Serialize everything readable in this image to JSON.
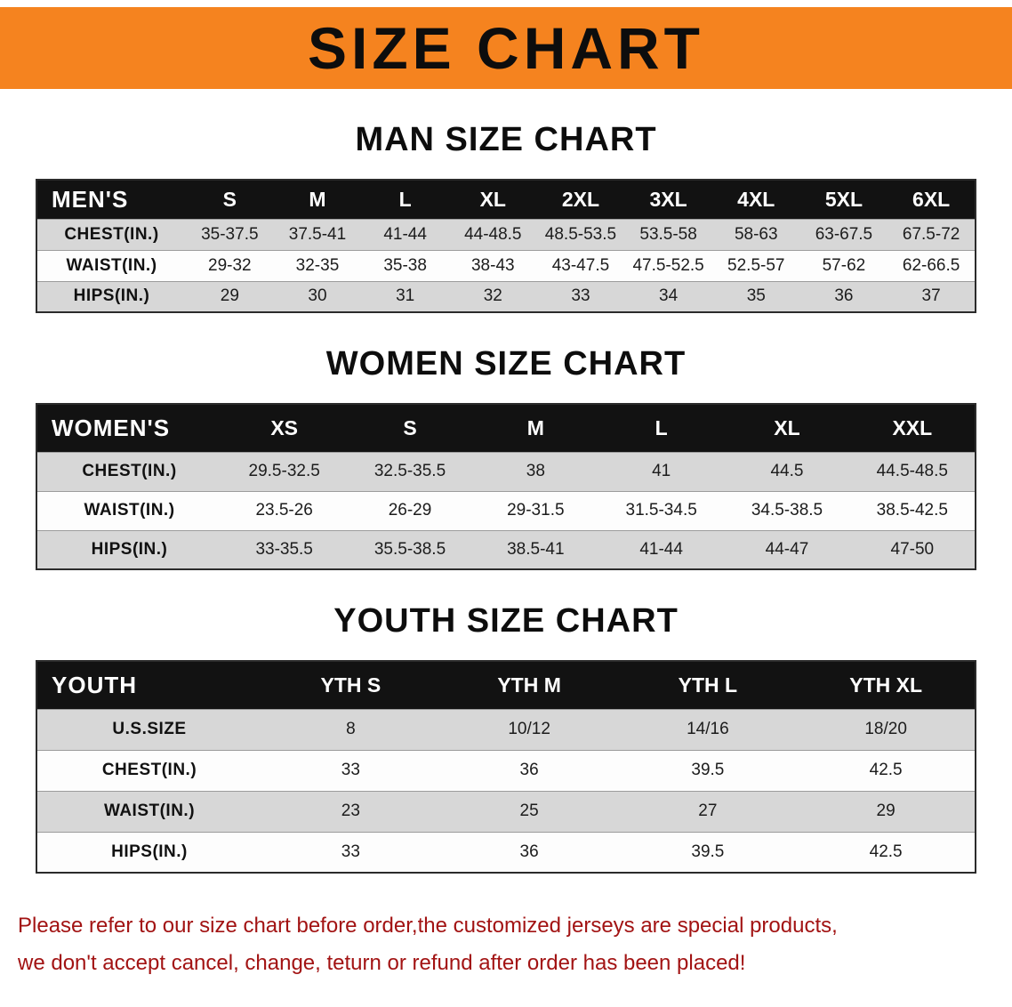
{
  "banner": {
    "title": "SIZE CHART",
    "bg_color": "#F5831F"
  },
  "sections": [
    {
      "heading": "MAN SIZE CHART",
      "table": {
        "label": "MEN'S",
        "columns": [
          "S",
          "M",
          "L",
          "XL",
          "2XL",
          "3XL",
          "4XL",
          "5XL",
          "6XL"
        ],
        "rows": [
          {
            "label": "CHEST(IN.)",
            "values": [
              "35-37.5",
              "37.5-41",
              "41-44",
              "44-48.5",
              "48.5-53.5",
              "53.5-58",
              "58-63",
              "63-67.5",
              "67.5-72"
            ]
          },
          {
            "label": "WAIST(IN.)",
            "values": [
              "29-32",
              "32-35",
              "35-38",
              "38-43",
              "43-47.5",
              "47.5-52.5",
              "52.5-57",
              "57-62",
              "62-66.5"
            ]
          },
          {
            "label": "HIPS(IN.)",
            "values": [
              "29",
              "30",
              "31",
              "32",
              "33",
              "34",
              "35",
              "36",
              "37"
            ]
          }
        ]
      }
    },
    {
      "heading": "WOMEN SIZE CHART",
      "table": {
        "label": "WOMEN'S",
        "columns": [
          "XS",
          "S",
          "M",
          "L",
          "XL",
          "XXL"
        ],
        "rows": [
          {
            "label": "CHEST(IN.)",
            "values": [
              "29.5-32.5",
              "32.5-35.5",
              "38",
              "41",
              "44.5",
              "44.5-48.5"
            ]
          },
          {
            "label": "WAIST(IN.)",
            "values": [
              "23.5-26",
              "26-29",
              "29-31.5",
              "31.5-34.5",
              "34.5-38.5",
              "38.5-42.5"
            ]
          },
          {
            "label": "HIPS(IN.)",
            "values": [
              "33-35.5",
              "35.5-38.5",
              "38.5-41",
              "41-44",
              "44-47",
              "47-50"
            ]
          }
        ]
      }
    },
    {
      "heading": "YOUTH SIZE CHART",
      "table": {
        "label": "YOUTH",
        "columns": [
          "YTH S",
          "YTH M",
          "YTH L",
          "YTH XL"
        ],
        "rows": [
          {
            "label": "U.S.SIZE",
            "values": [
              "8",
              "10/12",
              "14/16",
              "18/20"
            ]
          },
          {
            "label": "CHEST(IN.)",
            "values": [
              "33",
              "36",
              "39.5",
              "42.5"
            ]
          },
          {
            "label": "WAIST(IN.)",
            "values": [
              "23",
              "25",
              "27",
              "29"
            ]
          },
          {
            "label": "HIPS(IN.)",
            "values": [
              "33",
              "36",
              "39.5",
              "42.5"
            ]
          }
        ]
      }
    }
  ],
  "footer": {
    "text_color": "#A21313",
    "lines": [
      "Please refer to our size chart before order,the customized jerseys are special products,",
      "we don't accept cancel, change, teturn or refund after order has been placed!"
    ]
  }
}
